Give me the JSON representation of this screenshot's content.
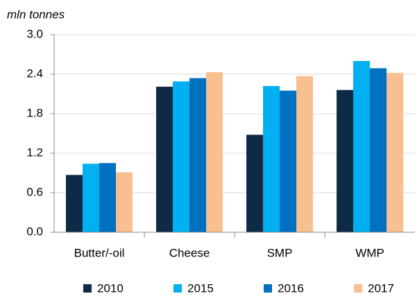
{
  "chart_data": {
    "type": "bar",
    "y_label": "mln tonnes",
    "categories": [
      "Butter/-oil",
      "Cheese",
      "SMP",
      "WMP"
    ],
    "series": [
      {
        "name": "2010",
        "color": "#0e2a47",
        "values": [
          0.87,
          2.21,
          1.48,
          2.16
        ]
      },
      {
        "name": "2015",
        "color": "#00b0f0",
        "values": [
          1.04,
          2.29,
          2.22,
          2.6
        ]
      },
      {
        "name": "2016",
        "color": "#0070c0",
        "values": [
          1.05,
          2.34,
          2.15,
          2.49
        ]
      },
      {
        "name": "2017",
        "color": "#f8c090",
        "values": [
          0.91,
          2.43,
          2.37,
          2.42
        ]
      }
    ],
    "ylim": [
      0,
      3
    ],
    "yticks": [
      {
        "value": 0,
        "label": "0.0"
      },
      0.6,
      1.2,
      1.8,
      2.4,
      {
        "value": 3,
        "label": "3.0"
      }
    ],
    "grid": true,
    "legend": "bottom"
  }
}
